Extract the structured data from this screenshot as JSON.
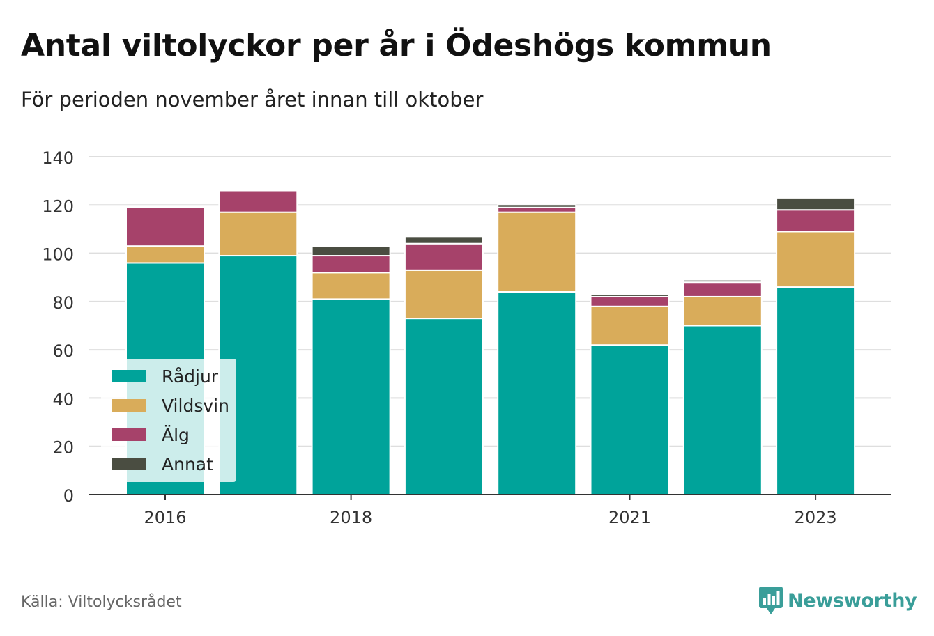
{
  "title": "Antal viltolyckor per år i Ödeshögs kommun",
  "subtitle": "För perioden november året innan till oktober",
  "source": "Källa: Viltolycksrådet",
  "brand": {
    "name": "Newsworthy",
    "icon": "newsworthy-logo-icon",
    "color": "#3a9e99"
  },
  "chart_data": {
    "type": "bar",
    "stacked": true,
    "categories": [
      "2016",
      "2017",
      "2018",
      "2019",
      "2020",
      "2021",
      "2022",
      "2023"
    ],
    "x_tick_labels": [
      "2016",
      "2018",
      "2021",
      "2023"
    ],
    "series": [
      {
        "name": "Rådjur",
        "color": "#00a39a",
        "values": [
          96,
          99,
          81,
          73,
          84,
          62,
          70,
          86
        ]
      },
      {
        "name": "Vildsvin",
        "color": "#d9ac5a",
        "values": [
          7,
          18,
          11,
          20,
          33,
          16,
          12,
          23
        ]
      },
      {
        "name": "Älg",
        "color": "#a6426a",
        "values": [
          16,
          9,
          7,
          11,
          2,
          4,
          6,
          9
        ]
      },
      {
        "name": "Annat",
        "color": "#4a4d41",
        "values": [
          0,
          0,
          4,
          3,
          1,
          1,
          1,
          5
        ]
      }
    ],
    "ylim": [
      0,
      140
    ],
    "yticks": [
      0,
      20,
      40,
      60,
      80,
      100,
      120,
      140
    ],
    "grid": true,
    "legend_position": "bottom-left"
  }
}
